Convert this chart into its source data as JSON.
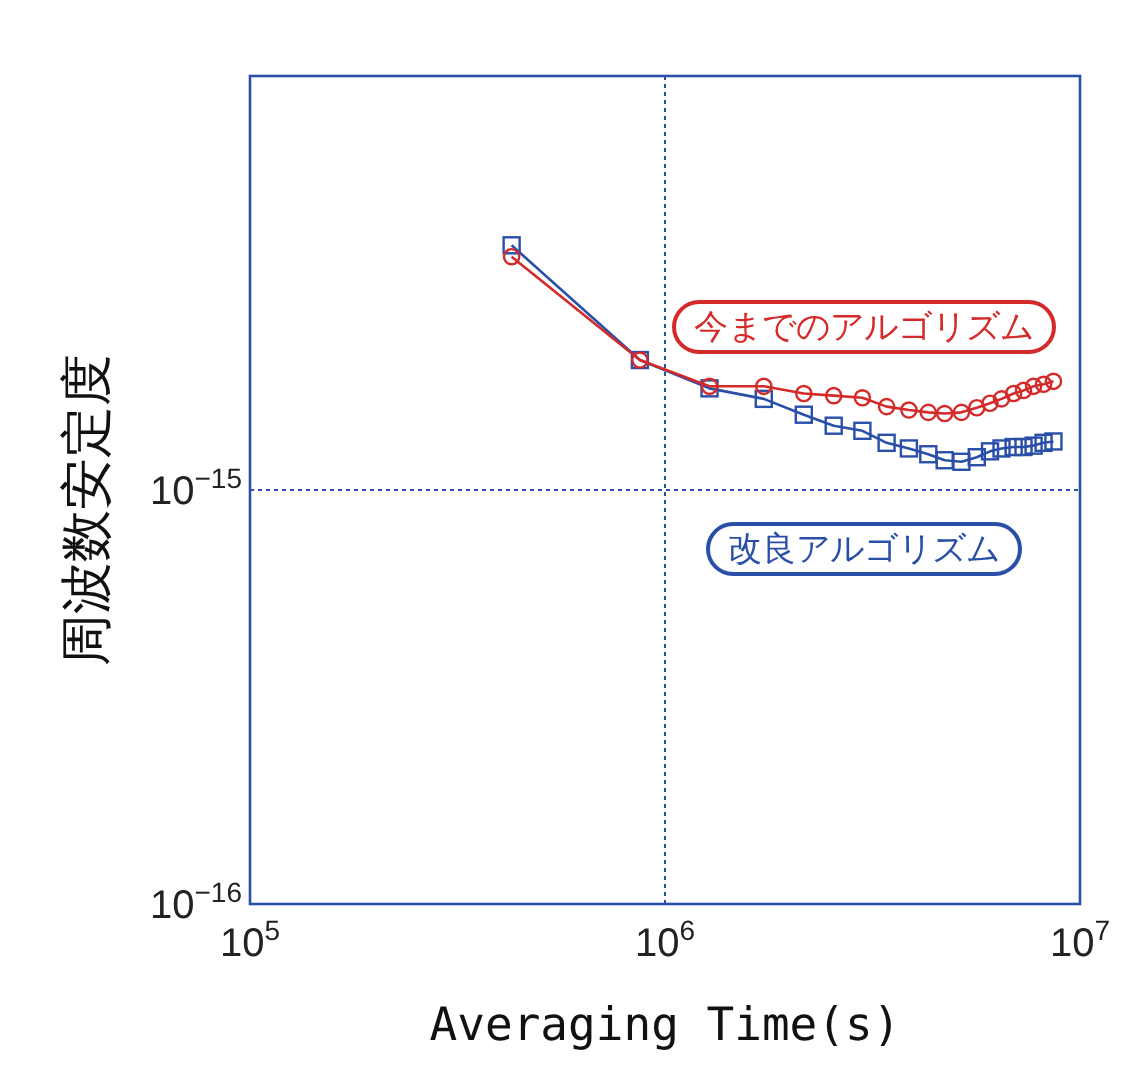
{
  "chart_data": {
    "type": "line",
    "xlabel": "Averaging Time(s)",
    "ylabel": "周波数安定度",
    "log": "xy",
    "grid": true,
    "line_style": "solid",
    "xlim": [
      100000,
      10000000
    ],
    "ylim": [
      1e-16,
      1e-14
    ],
    "xticks": [
      {
        "value": 100000,
        "label": "10$^{5}$"
      },
      {
        "value": 1000000,
        "label": "10$^{6}$"
      },
      {
        "value": 10000000,
        "label": "10$^{7}$"
      }
    ],
    "yticks": [
      {
        "value": 1e-16,
        "label": "10$^{−16}$"
      },
      {
        "value": 1e-15,
        "label": "10$^{−15}$"
      }
    ],
    "x": [
      427000,
      870000,
      1280000,
      1730000,
      2160000,
      2550000,
      2990000,
      3420000,
      3870000,
      4310000,
      4720000,
      5180000,
      5640000,
      6070000,
      6470000,
      6920000,
      7310000,
      7730000,
      8170000,
      8630000
    ],
    "series": [
      {
        "name": "今までのアルゴリズム",
        "color": "#d42a2a",
        "marker": "circle",
        "values": [
          3.66e-15,
          2.06e-15,
          1.78e-15,
          1.78e-15,
          1.71e-15,
          1.69e-15,
          1.67e-15,
          1.59e-15,
          1.56e-15,
          1.54e-15,
          1.53e-15,
          1.54e-15,
          1.58e-15,
          1.62e-15,
          1.66e-15,
          1.71e-15,
          1.74e-15,
          1.78e-15,
          1.8e-15,
          1.83e-15
        ]
      },
      {
        "name": "改良アルゴリズム",
        "color": "#2a4fa8",
        "marker": "square",
        "values": [
          3.9e-15,
          2.06e-15,
          1.76e-15,
          1.66e-15,
          1.52e-15,
          1.43e-15,
          1.39e-15,
          1.3e-15,
          1.26e-15,
          1.22e-15,
          1.18e-15,
          1.17e-15,
          1.2e-15,
          1.24e-15,
          1.26e-15,
          1.27e-15,
          1.27e-15,
          1.28e-15,
          1.3e-15,
          1.31e-15
        ]
      }
    ]
  }
}
